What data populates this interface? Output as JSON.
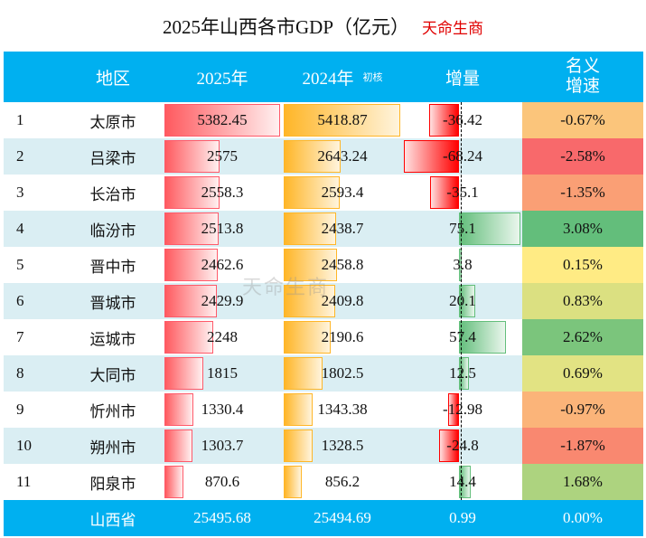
{
  "title": "2025年山西各市GDP（亿元）",
  "brand": "天命生商",
  "watermark": "天命生商",
  "header": {
    "region": "地区",
    "y2025": "2025年",
    "y2024": "2024年",
    "y2024_note": "初核",
    "change": "增量",
    "growth_1": "名义",
    "growth_2": "增速"
  },
  "colors": {
    "header_bg": "#00b0f0",
    "stripe": "#daeef3",
    "bar_2025": "#ff5a5f",
    "bar_2024": "#ffb628",
    "neg": "#ff0000",
    "pos": "#63be7b"
  },
  "rows": [
    {
      "rank": "1",
      "region": "太原市",
      "v2025": "5382.45",
      "v2024": "5418.87",
      "change": "-36.42",
      "growth": "-0.67%",
      "color": "#fbc57b"
    },
    {
      "rank": "2",
      "region": "吕梁市",
      "v2025": "2575",
      "v2024": "2643.24",
      "change": "-68.24",
      "growth": "-2.58%",
      "color": "#f8696b"
    },
    {
      "rank": "3",
      "region": "长治市",
      "v2025": "2558.3",
      "v2024": "2593.4",
      "change": "-35.1",
      "growth": "-1.35%",
      "color": "#fa9f75"
    },
    {
      "rank": "4",
      "region": "临汾市",
      "v2025": "2513.8",
      "v2024": "2438.7",
      "change": "75.1",
      "growth": "3.08%",
      "color": "#63be7b"
    },
    {
      "rank": "5",
      "region": "晋中市",
      "v2025": "2462.6",
      "v2024": "2458.8",
      "change": "3.8",
      "growth": "0.15%",
      "color": "#ffeb84"
    },
    {
      "rank": "6",
      "region": "晋城市",
      "v2025": "2429.9",
      "v2024": "2409.8",
      "change": "20.1",
      "growth": "0.83%",
      "color": "#dbe081"
    },
    {
      "rank": "7",
      "region": "运城市",
      "v2025": "2248",
      "v2024": "2190.6",
      "change": "57.4",
      "growth": "2.62%",
      "color": "#7bc57c"
    },
    {
      "rank": "8",
      "region": "大同市",
      "v2025": "1815",
      "v2024": "1802.5",
      "change": "12.5",
      "growth": "0.69%",
      "color": "#e2e383"
    },
    {
      "rank": "9",
      "region": "忻州市",
      "v2025": "1330.4",
      "v2024": "1343.38",
      "change": "-12.98",
      "growth": "-0.97%",
      "color": "#fbb479"
    },
    {
      "rank": "10",
      "region": "朔州市",
      "v2025": "1303.7",
      "v2024": "1328.5",
      "change": "-24.8",
      "growth": "-1.87%",
      "color": "#f98870"
    },
    {
      "rank": "11",
      "region": "阳泉市",
      "v2025": "870.6",
      "v2024": "856.2",
      "change": "14.4",
      "growth": "1.68%",
      "color": "#add37f"
    }
  ],
  "total": {
    "region": "山西省",
    "v2025": "25495.68",
    "v2024": "25494.69",
    "change": "0.99",
    "growth": "0.00%"
  }
}
